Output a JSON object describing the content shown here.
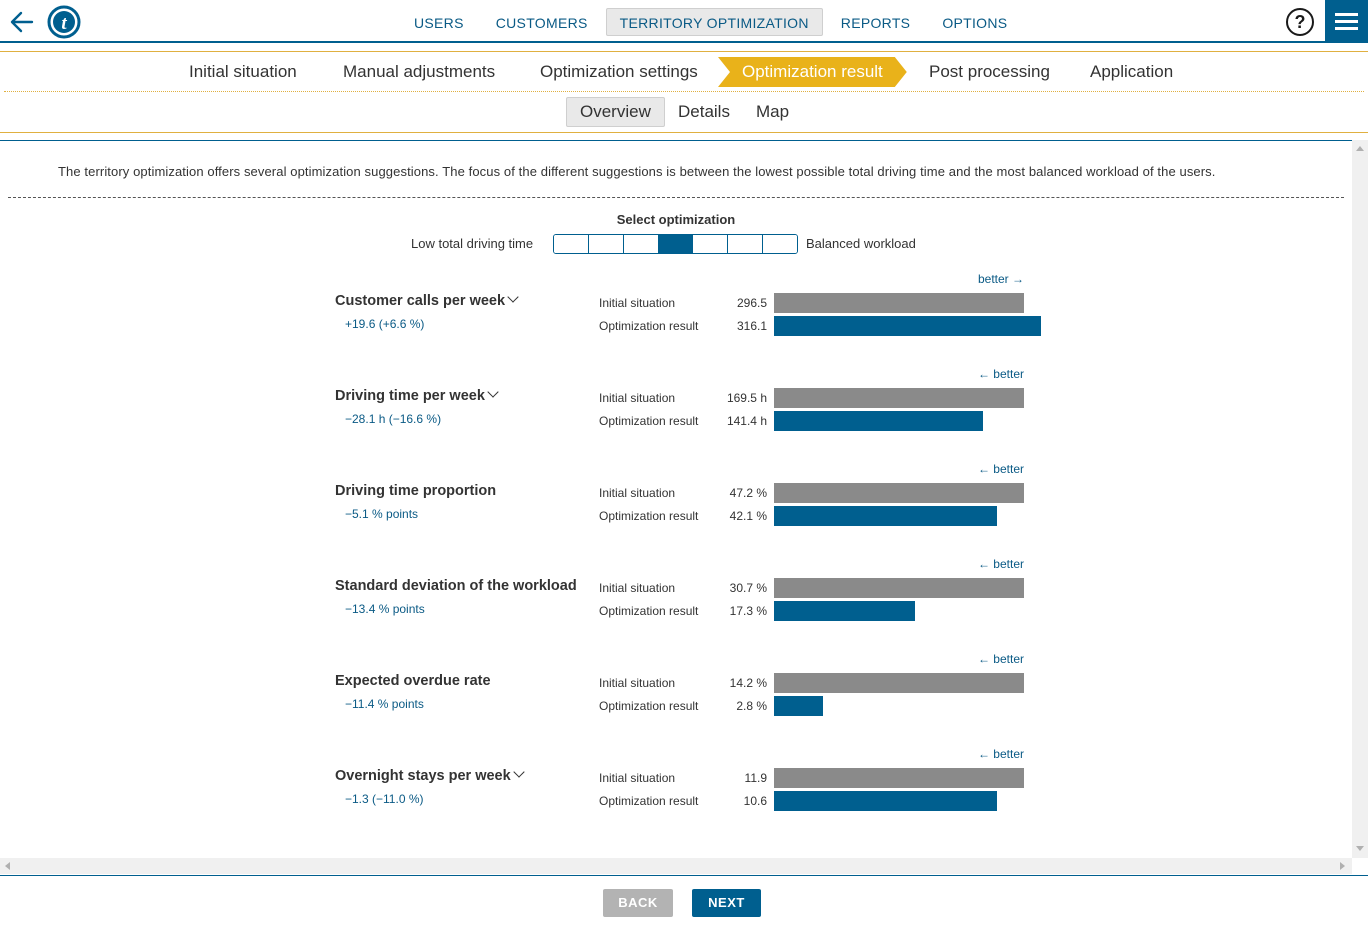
{
  "nav": {
    "items": [
      "USERS",
      "CUSTOMERS",
      "TERRITORY OPTIMIZATION",
      "REPORTS",
      "OPTIONS"
    ],
    "active_index": 2,
    "help_label": "?"
  },
  "workflow": {
    "steps": [
      "Initial situation",
      "Manual adjustments",
      "Optimization settings",
      "Optimization result",
      "Post processing",
      "Application"
    ],
    "active_index": 3,
    "subtabs": [
      "Overview",
      "Details",
      "Map"
    ],
    "active_subtab": 0
  },
  "content": {
    "intro": "The territory optimization offers several optimization suggestions. The focus of the different suggestions is between the lowest possible total driving time and the most balanced workload of the users.",
    "selector": {
      "title": "Select optimization",
      "left_label": "Low total driving time",
      "right_label": "Balanced workload",
      "segments": 7,
      "selected": 4
    },
    "label_initial": "Initial situation",
    "label_result": "Optimization result",
    "metrics": [
      {
        "title": "Customer calls per week",
        "dropdown": true,
        "delta": "+19.6 (+6.6 %)",
        "better": "better →",
        "initial": "296.5",
        "result": "316.1",
        "initial_num": 296.5,
        "result_num": 316.1
      },
      {
        "title": "Driving time per week",
        "dropdown": true,
        "delta": "−28.1 h (−16.6 %)",
        "better": "← better",
        "initial": "169.5 h",
        "result": "141.4 h",
        "initial_num": 169.5,
        "result_num": 141.4
      },
      {
        "title": "Driving time proportion",
        "dropdown": false,
        "delta": "−5.1 % points",
        "better": "← better",
        "initial": "47.2 %",
        "result": "42.1 %",
        "initial_num": 47.2,
        "result_num": 42.1
      },
      {
        "title": "Standard deviation of the workload",
        "dropdown": false,
        "delta": "−13.4 % points",
        "better": "← better",
        "initial": "30.7 %",
        "result": "17.3 %",
        "initial_num": 30.7,
        "result_num": 17.3
      },
      {
        "title": "Expected overdue rate",
        "dropdown": false,
        "delta": "−11.4 % points",
        "better": "← better",
        "initial": "14.2 %",
        "result": "2.8 %",
        "initial_num": 14.2,
        "result_num": 2.8
      },
      {
        "title": "Overnight stays per week",
        "dropdown": true,
        "delta": "−1.3 (−11.0 %)",
        "better": "← better",
        "initial": "11.9",
        "result": "10.6",
        "initial_num": 11.9,
        "result_num": 10.6
      }
    ]
  },
  "footer": {
    "back_label": "BACK",
    "next_label": "NEXT"
  },
  "colors": {
    "primary": "#005f8f",
    "accent": "#e9b21a",
    "bar_initial": "#8a8a8a"
  }
}
